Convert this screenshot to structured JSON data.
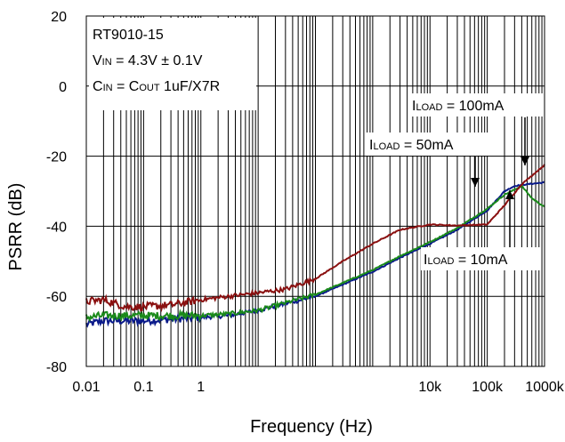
{
  "chart_data": {
    "type": "line",
    "title": "",
    "xlabel": "Frequency (Hz)",
    "ylabel": "PSRR (dB)",
    "xscale": "log",
    "xlim": [
      0.01,
      1000000
    ],
    "ylim": [
      -80,
      20
    ],
    "grid": true,
    "x_ticks": [
      {
        "value": 0.01,
        "label": "0.01"
      },
      {
        "value": 0.1,
        "label": "0.1"
      },
      {
        "value": 1,
        "label": "1"
      },
      {
        "value": 10000,
        "label": "10k"
      },
      {
        "value": 100000,
        "label": "100k"
      },
      {
        "value": 1000000,
        "label": "1000k"
      }
    ],
    "y_ticks": [
      {
        "value": 20,
        "label": "20"
      },
      {
        "value": 0,
        "label": "0"
      },
      {
        "value": -20,
        "label": "-20"
      },
      {
        "value": -40,
        "label": "-40"
      },
      {
        "value": -60,
        "label": "-60"
      },
      {
        "value": -80,
        "label": "-80"
      }
    ],
    "conditions": {
      "part": "RT9010-15",
      "vin_prefix": "V",
      "vin_sub": "IN",
      "vin_value": " = 4.3V ± 0.1V",
      "cin_prefix": "C",
      "cin_sub": "IN",
      "cin_mid": " = C",
      "cout_sub": "OUT",
      "cin_value": " 1uF/X7R"
    },
    "series": [
      {
        "color": "#0a1a8a",
        "label": {
          "prefix": "I",
          "sub": "LOAD",
          "value": " = 100mA"
        },
        "x": [
          0.01,
          0.02,
          0.05,
          0.1,
          0.3,
          1,
          3,
          10,
          100,
          1000,
          3000,
          10000,
          30000,
          100000,
          200000,
          300000,
          500000,
          1000000
        ],
        "y": [
          -68,
          -67,
          -67,
          -67,
          -66.5,
          -66,
          -65.5,
          -64,
          -60,
          -53,
          -49,
          -45,
          -41,
          -35.5,
          -30,
          -28.5,
          -28,
          -27.5
        ]
      },
      {
        "color": "#1a8a1a",
        "label": {
          "prefix": "I",
          "sub": "LOAD",
          "value": " = 50mA"
        },
        "x": [
          0.01,
          0.02,
          0.05,
          0.1,
          0.3,
          1,
          3,
          10,
          100,
          1000,
          3000,
          10000,
          30000,
          100000,
          200000,
          400000,
          600000,
          1000000
        ],
        "y": [
          -66,
          -65.5,
          -65.5,
          -65.5,
          -65.5,
          -65.5,
          -65,
          -64,
          -59.5,
          -52.5,
          -48.5,
          -44.5,
          -40.5,
          -35,
          -31,
          -28.5,
          -32,
          -34.5
        ]
      },
      {
        "color": "#8a1010",
        "label": {
          "prefix": "I",
          "sub": "LOAD",
          "value": " = 10mA"
        },
        "x": [
          0.01,
          0.02,
          0.05,
          0.1,
          0.3,
          1,
          3,
          10,
          30,
          100,
          300,
          1000,
          3000,
          10000,
          30000,
          100000,
          200000,
          400000,
          1000000
        ],
        "y": [
          -61.5,
          -61,
          -63,
          -63,
          -62.5,
          -61,
          -60,
          -59,
          -58,
          -55,
          -50,
          -45,
          -41,
          -39.5,
          -39.8,
          -39.5,
          -34,
          -28,
          -22.5
        ]
      }
    ]
  }
}
